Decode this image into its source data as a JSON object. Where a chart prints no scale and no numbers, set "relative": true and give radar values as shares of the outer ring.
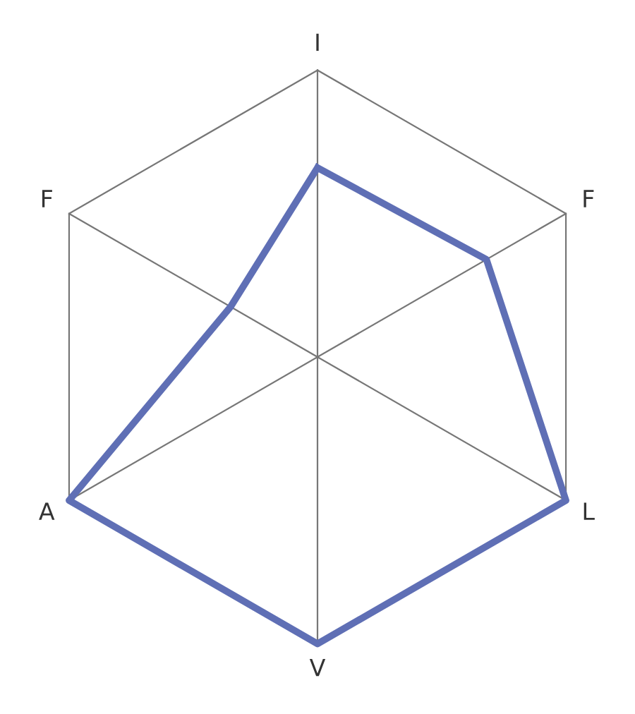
{
  "chart_data": {
    "type": "radar",
    "relative": true,
    "categories": [
      "I",
      "F",
      "L",
      "V",
      "A",
      "F"
    ],
    "series": [
      {
        "color": "#5f6fb5",
        "values": [
          0.66,
          0.68,
          1,
          1,
          1,
          0.35
        ]
      }
    ],
    "grid": true
  }
}
